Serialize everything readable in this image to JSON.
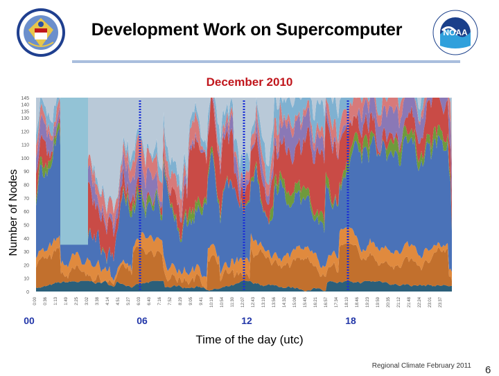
{
  "slide": {
    "title": "Development Work on Supercomputer",
    "subtitle": "December 2010",
    "footer": "Regional Climate February 2011",
    "page_number": "6",
    "seal_text": "DEPARTMENT OF COMMERCE · UNITED STATES OF AMERICA",
    "noaa_text": "NOAA"
  },
  "chart_data": {
    "type": "area",
    "stacked": true,
    "ylabel": "Number of Nodes",
    "xlabel": "Time of the day (utc)",
    "ylim": [
      0,
      145
    ],
    "yticks": [
      0,
      10,
      20,
      30,
      40,
      50,
      60,
      70,
      80,
      90,
      100,
      110,
      120,
      130,
      135,
      140,
      145
    ],
    "xlim": [
      0,
      24
    ],
    "xticks_hours": [
      0,
      6,
      12,
      18
    ],
    "xticks_labels": [
      "00",
      "06",
      "12",
      "18"
    ],
    "minor_xtick_labels": [
      "0:00",
      "0:36",
      "1:13",
      "1:49",
      "2:25",
      "3:02",
      "3:38",
      "4:14",
      "4:51",
      "5:27",
      "6:03",
      "6:40",
      "7:16",
      "7:52",
      "8:29",
      "9:05",
      "9:41",
      "10:18",
      "10:54",
      "11:30",
      "12:07",
      "12:43",
      "13:19",
      "13:56",
      "14:32",
      "15:08",
      "15:45",
      "16:21",
      "16:57",
      "17:34",
      "18:10",
      "18:46",
      "19:23",
      "19:59",
      "20:35",
      "21:12",
      "21:48",
      "22:24",
      "23:01",
      "23:37"
    ],
    "reference_lines_hours": [
      6,
      12,
      18
    ],
    "colors": {
      "reference_line": "#1a2fd6",
      "hour_label": "#2236a8",
      "subtitle": "#c0161c",
      "title_rule": "#a9bedd"
    },
    "series": [
      {
        "color": "#2b5f7a",
        "approx_level": 4
      },
      {
        "color": "#c2702d",
        "approx_level": 14
      },
      {
        "color": "#e08a3e",
        "approx_level": 6
      },
      {
        "color": "#4a72b8",
        "approx_level": 40
      },
      {
        "color": "#6f9a3c",
        "approx_level": 5
      },
      {
        "color": "#c94b46",
        "approx_level": 25
      },
      {
        "color": "#8a78b6",
        "approx_level": 10
      },
      {
        "color": "#d77a7a",
        "approx_level": 8
      },
      {
        "color": "#7fb1d1",
        "approx_level": 10
      }
    ],
    "gap_hours": [
      1.4,
      3.0
    ],
    "gap_color": "#93c3d6",
    "grid": false,
    "legend": "none"
  }
}
